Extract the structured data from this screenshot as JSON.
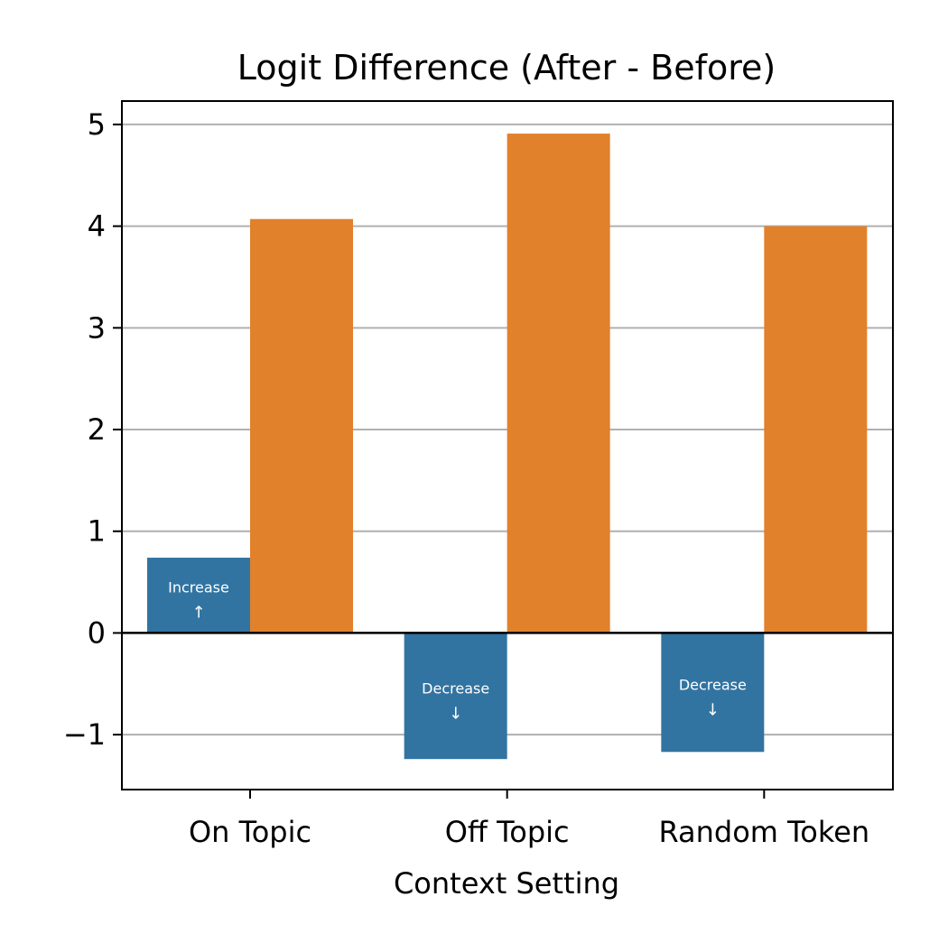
{
  "chart_data": {
    "type": "bar",
    "title": "Logit Difference (After - Before)",
    "xlabel": "Context Setting",
    "ylabel": "",
    "categories": [
      "On Topic",
      "Off Topic",
      "Random Token"
    ],
    "series": [
      {
        "values": [
          0.74,
          -1.24,
          -1.17
        ],
        "color": "#3274a1"
      },
      {
        "values": [
          4.07,
          4.91,
          4.0
        ],
        "color": "#e1812c"
      }
    ],
    "bar_annotations": [
      {
        "label": "Increase",
        "arrow": "↑"
      },
      {
        "label": "Decrease",
        "arrow": "↓"
      },
      {
        "label": "Decrease",
        "arrow": "↓"
      }
    ],
    "yticks": [
      -1,
      0,
      1,
      2,
      3,
      4,
      5
    ],
    "ytick_labels": [
      "−1",
      "0",
      "1",
      "2",
      "3",
      "4",
      "5"
    ],
    "ylim": [
      -1.54,
      5.23
    ],
    "grid": "y",
    "legend": "none"
  }
}
